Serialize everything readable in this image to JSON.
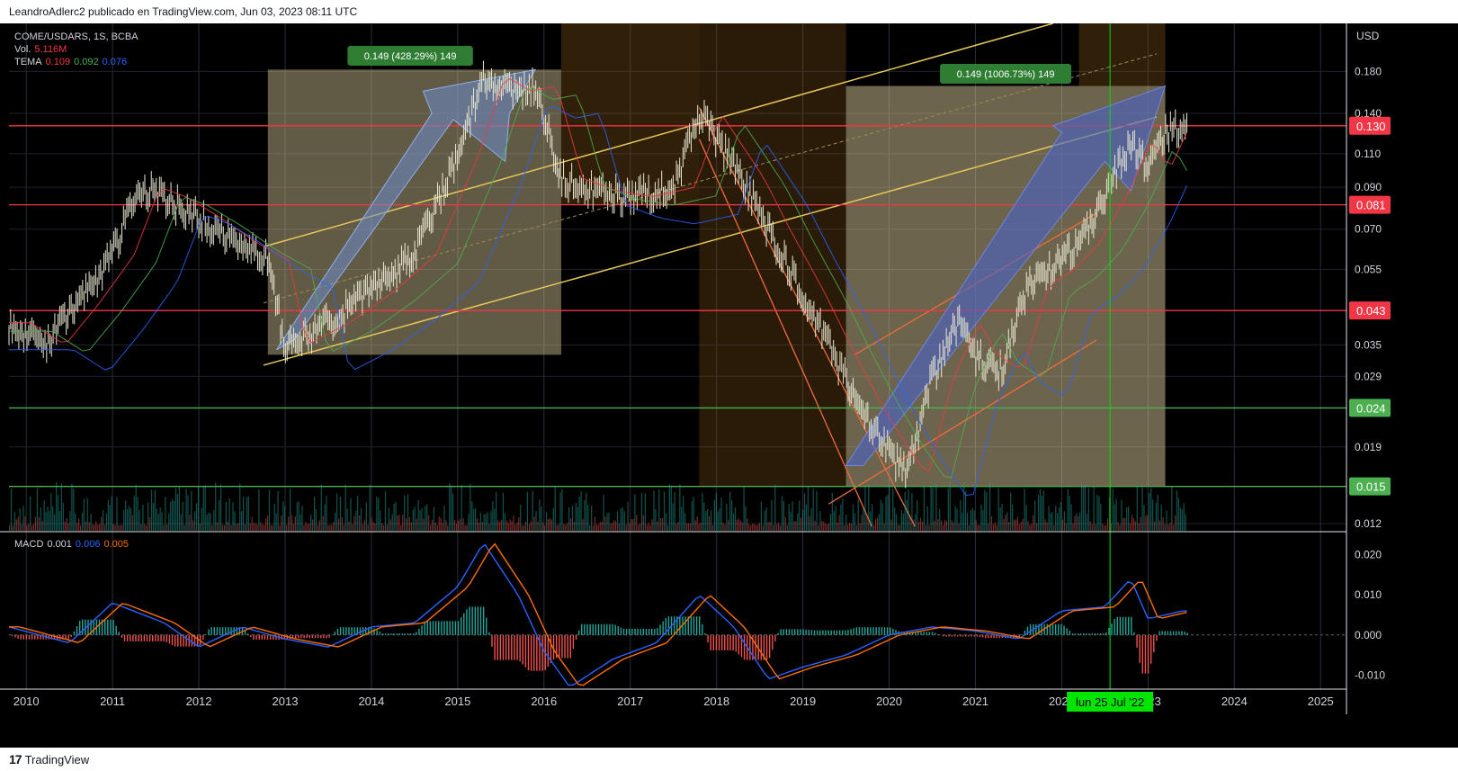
{
  "header": {
    "text": "LeandroAdlerc2 publicado en TradingView.com, Jun 03, 2023 08:11 UTC"
  },
  "footer": {
    "brand": "TradingView",
    "logo": "17"
  },
  "legend": {
    "symbol": "COME/USDARS, 1S, BCBA",
    "vol_label": "Vol.",
    "vol_value": "5.116M",
    "tema_label": "TEMA",
    "tema_v1": "0.109",
    "tema_v2": "0.092",
    "tema_v3": "0.076",
    "macd_label": "MACD",
    "macd_v1": "0.001",
    "macd_v2": "0.006",
    "macd_v3": "0.005"
  },
  "colors": {
    "red_level": "#f23645",
    "green_level": "#4caf50",
    "macd": "#2962ff",
    "signal": "#ff6d00",
    "tema1": "#f23645",
    "tema2": "#4caf50",
    "tema3": "#2962ff",
    "crosshair": "#00e600"
  },
  "chart_data": [
    {
      "type": "line",
      "title": "COME/USDARS, 1S, BCBA",
      "y_scale": "log",
      "currency": "USD",
      "ylim": [
        0.0115,
        0.24
      ],
      "xlim": [
        2009.8,
        2025.3
      ],
      "x_ticks": [
        "2010",
        "2011",
        "2012",
        "2013",
        "2014",
        "2015",
        "2016",
        "2017",
        "2018",
        "2019",
        "2020",
        "2021",
        "2022",
        "2023",
        "2024",
        "2025"
      ],
      "y_ticks": [
        "0.180",
        "0.140",
        "0.110",
        "0.090",
        "0.070",
        "0.055",
        "0.035",
        "0.029",
        "0.019",
        "0.012"
      ],
      "price_levels": [
        {
          "value": "0.130",
          "color": "#f23645"
        },
        {
          "value": "0.081",
          "color": "#f23645"
        },
        {
          "value": "0.043",
          "color": "#f23645"
        },
        {
          "value": "0.024",
          "color": "#4caf50"
        },
        {
          "value": "0.015",
          "color": "#4caf50"
        }
      ],
      "measure_labels": [
        "0.149 (428.29%) 149",
        "0.149 (1006.73%) 149"
      ],
      "crosshair_label": "lun 25 Jul '22",
      "series": [
        {
          "name": "COME/USDARS",
          "x": [
            2009.8,
            2010.2,
            2010.6,
            2011.0,
            2011.3,
            2011.6,
            2012.0,
            2012.4,
            2012.8,
            2013.0,
            2013.5,
            2014.0,
            2014.5,
            2015.0,
            2015.3,
            2015.6,
            2015.9,
            2016.2,
            2016.6,
            2017.0,
            2017.5,
            2017.8,
            2018.0,
            2018.3,
            2018.6,
            2019.0,
            2019.3,
            2019.6,
            2019.9,
            2020.2,
            2020.5,
            2020.8,
            2021.0,
            2021.3,
            2021.6,
            2021.9,
            2022.2,
            2022.5,
            2022.8,
            2023.0,
            2023.2,
            2023.4
          ],
          "values": [
            0.04,
            0.035,
            0.045,
            0.06,
            0.09,
            0.085,
            0.075,
            0.065,
            0.058,
            0.035,
            0.04,
            0.048,
            0.06,
            0.11,
            0.175,
            0.16,
            0.165,
            0.095,
            0.088,
            0.085,
            0.09,
            0.14,
            0.12,
            0.095,
            0.07,
            0.048,
            0.035,
            0.026,
            0.02,
            0.016,
            0.029,
            0.04,
            0.033,
            0.03,
            0.05,
            0.055,
            0.065,
            0.085,
            0.12,
            0.1,
            0.125,
            0.13
          ]
        },
        {
          "name": "TEMA",
          "values": [
            0.109
          ]
        },
        {
          "name": "TEMA",
          "values": [
            0.092
          ]
        },
        {
          "name": "TEMA",
          "values": [
            0.076
          ]
        }
      ]
    },
    {
      "type": "line",
      "title": "MACD",
      "ylim": [
        -0.0135,
        0.0255
      ],
      "y_ticks": [
        "0.020",
        "0.010",
        "0.000",
        "-0.010"
      ],
      "series": [
        {
          "name": "MACD",
          "x": [
            2009.8,
            2010.5,
            2011.0,
            2011.6,
            2012.0,
            2012.5,
            2013.0,
            2013.5,
            2014.0,
            2014.5,
            2015.0,
            2015.3,
            2015.7,
            2016.0,
            2016.3,
            2016.8,
            2017.3,
            2017.8,
            2018.2,
            2018.6,
            2019.0,
            2019.5,
            2020.0,
            2020.5,
            2021.0,
            2021.5,
            2022.0,
            2022.5,
            2022.8,
            2023.0,
            2023.4
          ],
          "values": [
            0.002,
            -0.002,
            0.008,
            0.003,
            -0.003,
            0.002,
            -0.001,
            -0.003,
            0.002,
            0.003,
            0.012,
            0.023,
            0.01,
            -0.004,
            -0.013,
            -0.006,
            -0.002,
            0.01,
            0.002,
            -0.011,
            -0.008,
            -0.005,
            0.0,
            0.002,
            0.001,
            -0.001,
            0.006,
            0.007,
            0.014,
            0.004,
            0.006
          ]
        },
        {
          "name": "Signal",
          "values": [
            0.005
          ]
        }
      ]
    }
  ]
}
